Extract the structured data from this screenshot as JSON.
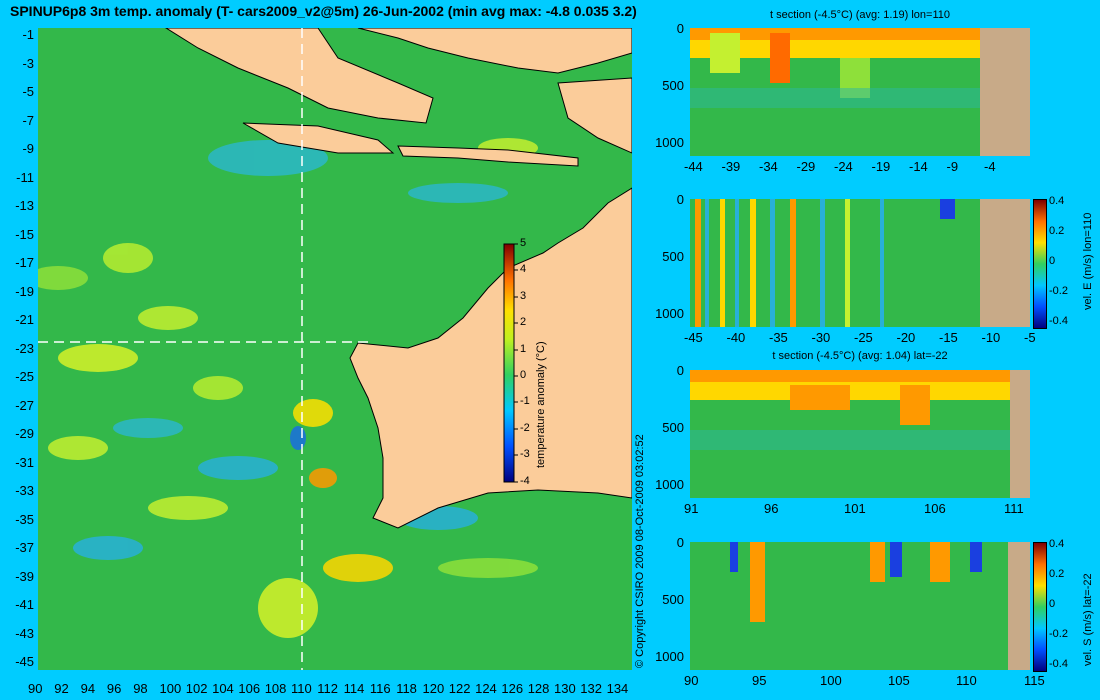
{
  "title": "SPINUP6p8 3m temp. anomaly (T- cars2009_v2@5m) 26-Jun-2002 (min avg max: -4.8 0.035 3.2)",
  "copyright": "© Copyright CSIRO 2009   08-Oct-2009 03:02:52",
  "map": {
    "x_ticks": [
      "90",
      "92",
      "94",
      "96",
      "98",
      "100",
      "102",
      "104",
      "106",
      "108",
      "110",
      "112",
      "114",
      "116",
      "118",
      "120",
      "122",
      "124",
      "126",
      "128",
      "130",
      "132",
      "134"
    ],
    "y_ticks": [
      "-1",
      "-3",
      "-5",
      "-7",
      "-9",
      "-11",
      "-13",
      "-15",
      "-17",
      "-19",
      "-21",
      "-23",
      "-25",
      "-27",
      "-29",
      "-31",
      "-33",
      "-35",
      "-37",
      "-39",
      "-41",
      "-43",
      "-45"
    ],
    "colorbar": {
      "label": "temperature anomaly (°C)",
      "ticks": [
        "5",
        "4",
        "3",
        "2",
        "1",
        "0",
        "-1",
        "-2",
        "-3",
        "-4"
      ]
    },
    "crosshair": {
      "lon": 110,
      "lat": -22
    },
    "colors": {
      "ocean": "#33b84a",
      "land": "#fbcc9a",
      "coast": "#000000"
    }
  },
  "panels": [
    {
      "title": "t section (-4.5°C) (avg: 1.19) lon=110",
      "x_ticks": [
        "-44",
        "-39",
        "-34",
        "-29",
        "-24",
        "-19",
        "-14",
        "-9",
        "-4"
      ],
      "y_ticks": [
        "0",
        "500",
        "1000"
      ],
      "side_label": "",
      "colorbar_ticks": []
    },
    {
      "title": "",
      "x_ticks": [
        "-45",
        "-40",
        "-35",
        "-30",
        "-25",
        "-20",
        "-15",
        "-10",
        "-5"
      ],
      "y_ticks": [
        "0",
        "500",
        "1000"
      ],
      "side_label": "vel. E (m/s) lon=110",
      "colorbar_ticks": [
        "0.4",
        "0.2",
        "0",
        "-0.2",
        "-0.4"
      ]
    },
    {
      "title": "t section (-4.5°C) (avg: 1.04) lat=-22",
      "x_ticks": [
        "91",
        "96",
        "101",
        "106",
        "111"
      ],
      "y_ticks": [
        "0",
        "500",
        "1000"
      ],
      "side_label": "",
      "colorbar_ticks": []
    },
    {
      "title": "",
      "x_ticks": [
        "90",
        "95",
        "100",
        "105",
        "110",
        "115"
      ],
      "y_ticks": [
        "0",
        "500",
        "1000"
      ],
      "side_label": "vel. S (m/s) lat=-22",
      "colorbar_ticks": [
        "0.4",
        "0.2",
        "0",
        "-0.2",
        "-0.4"
      ]
    }
  ]
}
